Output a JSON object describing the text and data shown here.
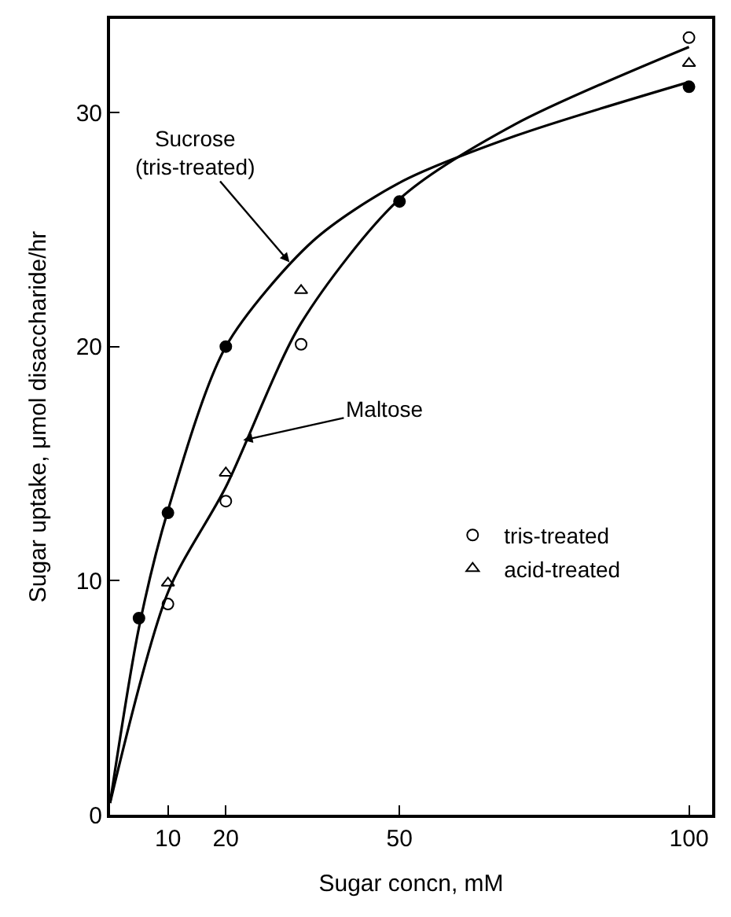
{
  "chart_data": {
    "type": "scatter",
    "xlabel": "Sugar concn, mM",
    "ylabel": "Sugar uptake, μmol disaccharide/hr",
    "xlim": [
      0,
      104
    ],
    "ylim": [
      0,
      34
    ],
    "xticks": [
      10,
      20,
      50,
      100
    ],
    "yticks": [
      0,
      10,
      20,
      30
    ],
    "legend": "right",
    "series": [
      {
        "type": "line",
        "color": "#000000",
        "x": [
          0,
          5,
          10,
          20,
          35,
          50,
          70,
          100
        ],
        "values": [
          0.5,
          8,
          13,
          20,
          24.5,
          27,
          29,
          31.3
        ],
        "marker": "none",
        "line_style": "solid"
      },
      {
        "type": "line",
        "color": "#000000",
        "x": [
          0,
          10,
          20,
          33,
          50,
          70,
          100
        ],
        "values": [
          0.5,
          9.5,
          14,
          21,
          26.3,
          29.5,
          32.8
        ],
        "marker": "none",
        "line_style": "solid"
      },
      {
        "color": "#000000",
        "x": [
          5,
          10,
          20,
          50,
          100
        ],
        "values": [
          8.4,
          12.9,
          20,
          26.2,
          31.1
        ],
        "marker": "circle"
      },
      {
        "name": "tris-treated",
        "color": "#000000",
        "x": [
          10,
          20,
          33,
          100
        ],
        "values": [
          9,
          13.4,
          20.1,
          33.2
        ],
        "marker": "circle"
      },
      {
        "name": "acid-treated",
        "color": "#000000",
        "x": [
          10,
          20,
          33,
          100
        ],
        "values": [
          9.9,
          14.6,
          22.4,
          32.1
        ],
        "marker": "triangle"
      }
    ],
    "annotations": [
      {
        "text": "Sucrose\n(tris-treated)",
        "x": 31,
        "y": 23.6
      },
      {
        "text": "Maltose",
        "x": 23,
        "y": 16
      }
    ]
  }
}
